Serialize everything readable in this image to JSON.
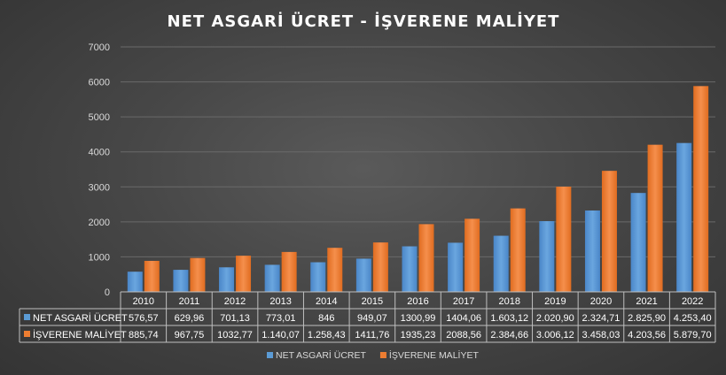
{
  "chart_data": {
    "type": "bar",
    "title": "NET ASGARİ ÜCRET - İŞVERENE MALİYET",
    "categories": [
      "2010",
      "2011",
      "2012",
      "2013",
      "2014",
      "2015",
      "2016",
      "2017",
      "2018",
      "2019",
      "2020",
      "2021",
      "2022"
    ],
    "ylim": [
      0,
      7000
    ],
    "yticks": [
      0,
      1000,
      2000,
      3000,
      4000,
      5000,
      6000,
      7000
    ],
    "ytick_labels": [
      "0",
      "1000",
      "2000",
      "3000",
      "4000",
      "5000",
      "6000",
      "7000"
    ],
    "grid": true,
    "legend_position": "bottom",
    "data_table": true,
    "series": [
      {
        "name": "NET ASGARİ ÜCRET",
        "color": "#5b9bd5",
        "values": [
          576.57,
          629.96,
          701.13,
          773.01,
          846,
          949.07,
          1300.99,
          1404.06,
          1603.12,
          2020.9,
          2324.71,
          2825.9,
          4253.4
        ],
        "labels": [
          "576,57",
          "629,96",
          "701,13",
          "773,01",
          "846",
          "949,07",
          "1300,99",
          "1404,06",
          "1.603,12",
          "2.020,90",
          "2.324,71",
          "2.825,90",
          "4.253,40"
        ]
      },
      {
        "name": "İŞVERENE MALİYET",
        "color": "#ed7d31",
        "values": [
          885.74,
          967.75,
          1032.77,
          1140.07,
          1258.43,
          1411.76,
          1935.23,
          2088.56,
          2384.66,
          3006.12,
          3458.03,
          4203.56,
          5879.7
        ],
        "labels": [
          "885,74",
          "967,75",
          "1032,77",
          "1.140,07",
          "1.258,43",
          "1411,76",
          "1935,23",
          "2088,56",
          "2.384,66",
          "3.006,12",
          "3.458,03",
          "4.203,56",
          "5.879,70"
        ]
      }
    ]
  }
}
